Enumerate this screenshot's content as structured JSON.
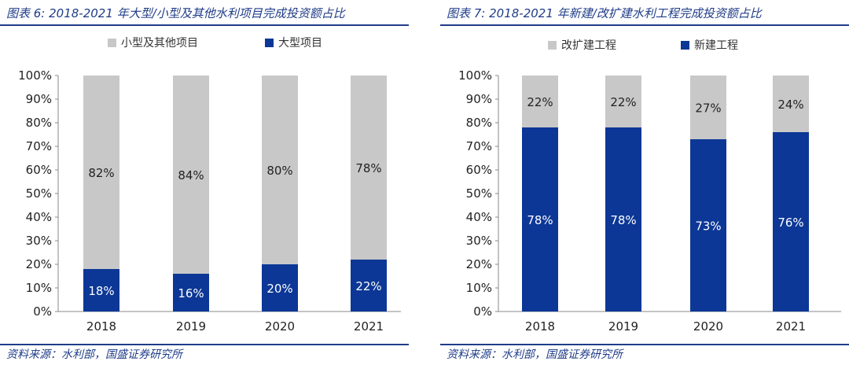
{
  "colors": {
    "accent": "#1f3c88",
    "bar_dark": "#0c3796",
    "bar_light": "#c8c8c8",
    "axis": "#8a8a8a"
  },
  "chart_data": [
    {
      "type": "bar",
      "stacked": true,
      "title": "图表 6:  2018-2021 年大型/小型及其他水利项目完成投资额占比",
      "source": "资料来源：水利部，国盛证券研究所",
      "categories": [
        "2018",
        "2019",
        "2020",
        "2021"
      ],
      "series": [
        {
          "name": "大型项目",
          "values": [
            18,
            16,
            20,
            22
          ],
          "labels": [
            "18%",
            "16%",
            "20%",
            "22%"
          ]
        },
        {
          "name": "小型及其他项目",
          "values": [
            82,
            84,
            80,
            78
          ],
          "labels": [
            "82%",
            "84%",
            "80%",
            "78%"
          ]
        }
      ],
      "legend": [
        "小型及其他项目",
        "大型项目"
      ],
      "legend_position": "top",
      "ylim": [
        0,
        100
      ],
      "yticks": [
        "0%",
        "10%",
        "20%",
        "30%",
        "40%",
        "50%",
        "60%",
        "70%",
        "80%",
        "90%",
        "100%"
      ],
      "xlabel": "",
      "ylabel": ""
    },
    {
      "type": "bar",
      "stacked": true,
      "title": "图表 7:  2018-2021 年新建/改扩建水利工程完成投资额占比",
      "source": "资料来源：水利部，国盛证券研究所",
      "categories": [
        "2018",
        "2019",
        "2020",
        "2021"
      ],
      "series": [
        {
          "name": "新建工程",
          "values": [
            78,
            78,
            73,
            76
          ],
          "labels": [
            "78%",
            "78%",
            "73%",
            "76%"
          ]
        },
        {
          "name": "改扩建工程",
          "values": [
            22,
            22,
            27,
            24
          ],
          "labels": [
            "22%",
            "22%",
            "27%",
            "24%"
          ]
        }
      ],
      "legend": [
        "改扩建工程",
        "新建工程"
      ],
      "legend_position": "top",
      "ylim": [
        0,
        100
      ],
      "yticks": [
        "0%",
        "10%",
        "20%",
        "30%",
        "40%",
        "50%",
        "60%",
        "70%",
        "80%",
        "90%",
        "100%"
      ],
      "xlabel": "",
      "ylabel": ""
    }
  ]
}
